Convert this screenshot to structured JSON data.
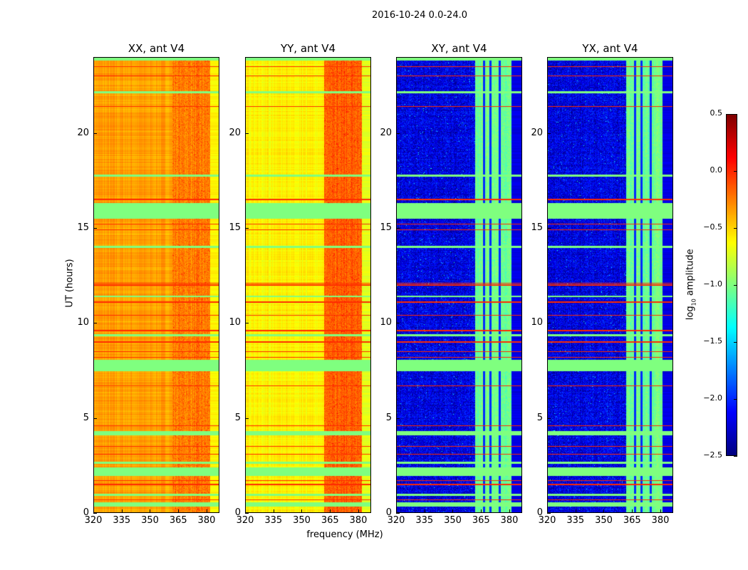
{
  "suptitle": "2016-10-24 0.0-24.0",
  "xlabel": "frequency (MHz)",
  "ylabel": "UT (hours)",
  "colorbar": {
    "label_main": "log",
    "label_sub": "10",
    "label_rest": " amplitude",
    "vmin": -2.5,
    "vmax": 0.5,
    "ticks": [
      0.5,
      0.0,
      -0.5,
      -1.0,
      -1.5,
      -2.0,
      -2.5
    ],
    "tick_labels": [
      "0.5",
      "0.0",
      "−0.5",
      "−1.0",
      "−1.5",
      "−2.0",
      "−2.5"
    ],
    "colormap": "jet"
  },
  "chart_data": [
    {
      "type": "heatmap",
      "title": "XX, ant V4",
      "xlim": [
        320,
        386.8
      ],
      "ylim": [
        0,
        24
      ],
      "xticks": [
        320,
        335,
        350,
        365,
        380
      ],
      "yticks": [
        0,
        5,
        10,
        15,
        20
      ],
      "base": -0.35,
      "band": [
        362,
        382
      ],
      "band_level": -0.25,
      "edge_level": -0.6
    },
    {
      "type": "heatmap",
      "title": "YY, ant V4",
      "xlim": [
        320,
        386.8
      ],
      "ylim": [
        0,
        24
      ],
      "xticks": [
        320,
        335,
        350,
        365,
        380
      ],
      "yticks": [
        0,
        5,
        10,
        15,
        20
      ],
      "base": -0.6,
      "band": [
        362,
        382
      ],
      "band_level": -0.15,
      "edge_level": -0.7
    },
    {
      "type": "heatmap",
      "title": "XY, ant V4",
      "xlim": [
        320,
        386.8
      ],
      "ylim": [
        0,
        24
      ],
      "xticks": [
        320,
        335,
        350,
        365,
        380
      ],
      "yticks": [
        0,
        5,
        10,
        15,
        20
      ],
      "base": -2.2,
      "band": [
        362,
        381
      ],
      "band_level": -1.05,
      "edge_level": -2.2
    },
    {
      "type": "heatmap",
      "title": "YX, ant V4",
      "xlim": [
        320,
        386.8
      ],
      "ylim": [
        0,
        24
      ],
      "xticks": [
        320,
        335,
        350,
        365,
        380
      ],
      "yticks": [
        0,
        5,
        10,
        15,
        20
      ],
      "base": -2.2,
      "band": [
        362,
        381
      ],
      "band_level": -1.05,
      "edge_level": -2.2
    }
  ],
  "flagged_hours": [
    [
      0.35,
      0.55
    ],
    [
      0.9,
      1.0
    ],
    [
      1.95,
      2.4
    ],
    [
      2.6,
      2.7
    ],
    [
      4.1,
      4.3
    ],
    [
      7.45,
      8.05
    ],
    [
      9.3,
      9.4
    ],
    [
      11.35,
      11.45
    ],
    [
      13.95,
      14.05
    ],
    [
      15.5,
      16.3
    ],
    [
      17.7,
      17.8
    ],
    [
      22.1,
      22.2
    ],
    [
      23.8,
      24.0
    ]
  ],
  "rfi_hours": [
    0.7,
    1.5,
    1.7,
    3.1,
    3.5,
    4.6,
    6.7,
    8.2,
    8.5,
    9.0,
    9.6,
    10.4,
    11.1,
    12.0,
    12.1,
    14.9,
    15.2,
    16.5,
    21.4,
    23.0,
    23.5
  ]
}
